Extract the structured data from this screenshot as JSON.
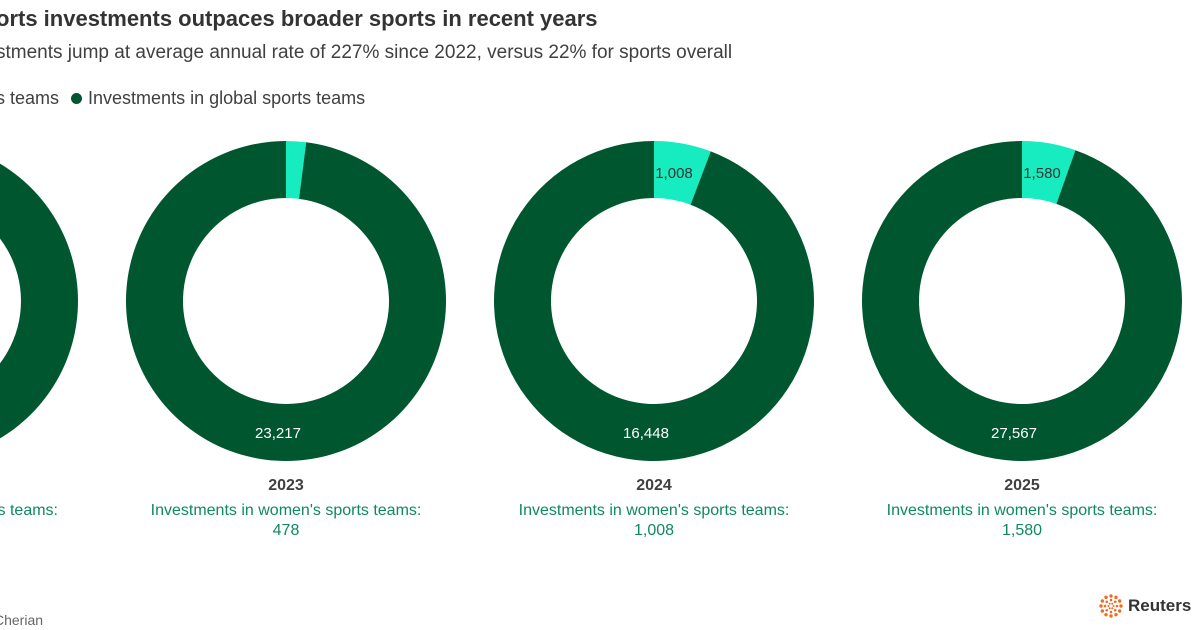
{
  "header": {
    "title": "orts investments outpaces broader sports in recent years",
    "subtitle": "stments jump at average annual rate of 227% since 2022, versus 22% for sports overall"
  },
  "legend": [
    {
      "label": "s teams",
      "color": "#17EBC0"
    },
    {
      "label": "Investments in global sports teams",
      "color": "#00572F"
    }
  ],
  "colors": {
    "womens": "#17EBC0",
    "global": "#00572F",
    "caption": "#0E8A5E"
  },
  "chart_data": {
    "type": "pie",
    "series": [
      {
        "name": "Investments in women's sports teams"
      },
      {
        "name": "Investments in global sports teams"
      }
    ],
    "panels": [
      {
        "year": "",
        "womens": null,
        "global": null,
        "caption_label": "s teams:",
        "caption_value": "",
        "womens_label": "",
        "global_label": ""
      },
      {
        "year": "2023",
        "womens": 478,
        "global": 23217,
        "caption_label": "Investments in women's sports teams:",
        "caption_value": "478",
        "womens_label": "",
        "global_label": "23,217"
      },
      {
        "year": "2024",
        "womens": 1008,
        "global": 16448,
        "caption_label": "Investments in women's sports teams:",
        "caption_value": "1,008",
        "womens_label": "1,008",
        "global_label": "16,448"
      },
      {
        "year": "2025",
        "womens": 1580,
        "global": 27567,
        "caption_label": "Investments in women's sports teams:",
        "caption_value": "1,580",
        "womens_label": "1,580",
        "global_label": "27,567"
      }
    ]
  },
  "footer": {
    "source": "Cherian",
    "logo_text": "Reuters",
    "logo_icon": "reuters-logo-icon"
  }
}
